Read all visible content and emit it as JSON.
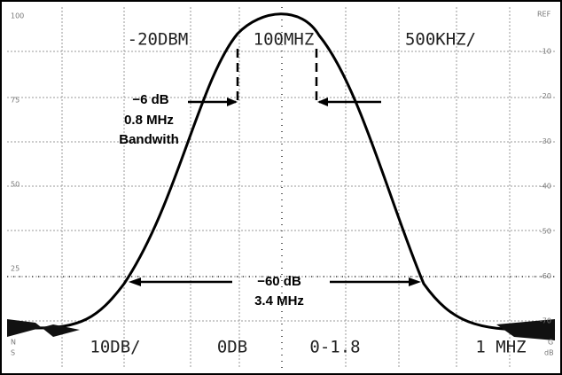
{
  "display": {
    "reference_level": "-20DBM",
    "center_frequency": "100MHZ",
    "span": "500KHZ/",
    "scale": "10DB/",
    "center_marker": "0DB",
    "marker_value": "0-1.8",
    "marker_span": "1 MHZ",
    "corner_left": [
      "N",
      "S"
    ],
    "corner_right": [
      "G",
      "dB"
    ]
  },
  "right_scale": {
    "ref": "REF",
    "labels": [
      "-10",
      "-20",
      "-30",
      "-40",
      "-50",
      "-60",
      "-70"
    ]
  },
  "left_scale": [
    "100",
    "75",
    "50",
    "25"
  ],
  "annotations": {
    "bandwidth_6db": [
      "−6 dB",
      "0.8 MHz",
      "Bandwith"
    ],
    "bandwidth_60db": [
      "−60 dB",
      "3.4 MHz"
    ]
  }
}
